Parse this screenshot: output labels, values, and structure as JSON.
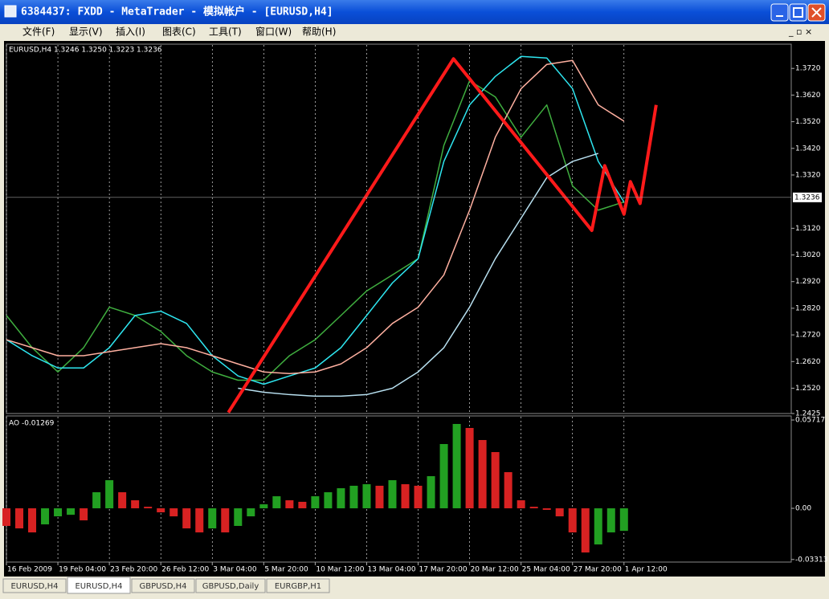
{
  "window": {
    "title": "6384437: FXDD - MetaTrader - 模拟帐户 - [EURUSD,H4]"
  },
  "menu": [
    "文件(F)",
    "显示(V)",
    "插入(I)",
    "图表(C)",
    "工具(T)",
    "窗口(W)",
    "帮助(H)"
  ],
  "tabs": [
    "EURUSD,H4",
    "EURUSD,H4",
    "GBPUSD,H4",
    "GBPUSD,Daily",
    "EURGBP,H1"
  ],
  "active_tab": 1,
  "chart_data": [
    {
      "type": "line",
      "title": "EURUSD,H4  1.3246 1.3250 1.3223 1.3236",
      "xlim": [
        0,
        244
      ],
      "ylim": [
        1.2425,
        1.3811
      ],
      "yticks": [
        {
          "value": 1.372,
          "label": "1.3720"
        },
        {
          "value": 1.362,
          "label": "1.3620"
        },
        {
          "value": 1.352,
          "label": "1.3520"
        },
        {
          "value": 1.342,
          "label": "1.3420"
        },
        {
          "value": 1.332,
          "label": "1.3320"
        },
        {
          "value": 1.312,
          "label": "1.3120"
        },
        {
          "value": 1.302,
          "label": "1.3020"
        },
        {
          "value": 1.292,
          "label": "1.2920"
        },
        {
          "value": 1.282,
          "label": "1.2820"
        },
        {
          "value": 1.272,
          "label": "1.2720"
        },
        {
          "value": 1.262,
          "label": "1.2620"
        },
        {
          "value": 1.252,
          "label": "1.2520"
        },
        {
          "value": 1.2425,
          "label": "1.2425"
        }
      ],
      "last_price": 1.3236,
      "series": [
        {
          "color": "#3fae3f",
          "x": [
            0,
            8,
            16,
            24,
            32,
            40,
            48,
            56,
            64,
            72,
            80,
            88,
            96,
            104,
            112,
            120,
            128,
            136,
            144,
            152,
            160,
            168,
            176,
            184,
            192
          ],
          "values": [
            1.2793,
            1.2672,
            1.2581,
            1.2672,
            1.2824,
            1.2793,
            1.2733,
            1.2642,
            1.2581,
            1.255,
            1.255,
            1.2642,
            1.2702,
            1.2793,
            1.2885,
            1.2945,
            1.3006,
            1.3431,
            1.3674,
            1.3613,
            1.3462,
            1.3583,
            1.3279,
            1.3188,
            1.3219
          ]
        },
        {
          "color": "#2ee6f0",
          "x": [
            0,
            8,
            16,
            24,
            32,
            40,
            48,
            56,
            64,
            72,
            80,
            88,
            96,
            104,
            112,
            120,
            128,
            136,
            144,
            152,
            160,
            168,
            176,
            184,
            192
          ],
          "values": [
            1.2702,
            1.2642,
            1.2596,
            1.2596,
            1.2672,
            1.2793,
            1.2809,
            1.2763,
            1.2642,
            1.2566,
            1.2535,
            1.2566,
            1.2596,
            1.2672,
            1.2793,
            1.2915,
            1.3006,
            1.3371,
            1.3583,
            1.369,
            1.3765,
            1.3759,
            1.3644,
            1.3371,
            1.3219
          ]
        },
        {
          "color": "#ffb0a0",
          "x": [
            0,
            8,
            16,
            24,
            32,
            40,
            48,
            56,
            64,
            72,
            80,
            88,
            96,
            104,
            112,
            120,
            128,
            136,
            144,
            152,
            160,
            168,
            176,
            184,
            192
          ],
          "values": [
            1.2702,
            1.2672,
            1.2642,
            1.2642,
            1.2657,
            1.2672,
            1.2687,
            1.2672,
            1.2642,
            1.2611,
            1.2581,
            1.2575,
            1.2581,
            1.2611,
            1.2672,
            1.2763,
            1.2824,
            1.2945,
            1.3188,
            1.3462,
            1.3644,
            1.3735,
            1.375,
            1.3583,
            1.3522
          ]
        },
        {
          "color": "#b8e0f0",
          "x": [
            72,
            80,
            88,
            96,
            104,
            112,
            120,
            128,
            136,
            144,
            152,
            160,
            168,
            176,
            184
          ],
          "values": [
            1.252,
            1.2505,
            1.2496,
            1.249,
            1.249,
            1.2496,
            1.252,
            1.2581,
            1.2672,
            1.2824,
            1.3006,
            1.3158,
            1.331,
            1.3371,
            1.3401
          ]
        },
        {
          "color": "#ff1a1a",
          "width": 4,
          "x": [
            69,
            139,
            182,
            186,
            192,
            194,
            197,
            202
          ],
          "values": [
            1.2429,
            1.3756,
            1.3112,
            1.3355,
            1.3173,
            1.3295,
            1.3213,
            1.3583
          ]
        }
      ]
    },
    {
      "type": "bar",
      "title": "AO -0.01269",
      "up_color": "#22a022",
      "down_color": "#d82222",
      "xlim": [
        0,
        244
      ],
      "ylim": [
        -0.0348,
        0.0598
      ],
      "yticks": [
        0.05717,
        {
          "value": 0,
          "label": "0.00"
        },
        -0.03313
      ],
      "xticks": [
        {
          "value": 0,
          "label": "16 Feb 2009"
        },
        {
          "value": 16,
          "label": "19 Feb 04:00"
        },
        {
          "value": 32,
          "label": "23 Feb 20:00"
        },
        {
          "value": 48,
          "label": "26 Feb 12:00"
        },
        {
          "value": 64,
          "label": "3 Mar 04:00"
        },
        {
          "value": 80,
          "label": "5 Mar 20:00"
        },
        {
          "value": 96,
          "label": "10 Mar 12:00"
        },
        {
          "value": 112,
          "label": "13 Mar 04:00"
        },
        {
          "value": 128,
          "label": "17 Mar 20:00"
        },
        {
          "value": 144,
          "label": "20 Mar 12:00"
        },
        {
          "value": 160,
          "label": "25 Mar 04:00"
        },
        {
          "value": 176,
          "label": "27 Mar 20:00"
        },
        {
          "value": 192,
          "label": "1 Apr 12:00"
        }
      ],
      "x": [
        0,
        4,
        8,
        12,
        16,
        20,
        24,
        28,
        32,
        36,
        40,
        44,
        48,
        52,
        56,
        60,
        64,
        68,
        72,
        76,
        80,
        84,
        88,
        92,
        96,
        100,
        104,
        108,
        112,
        116,
        120,
        124,
        128,
        132,
        136,
        140,
        144,
        148,
        152,
        156,
        160,
        164,
        168,
        172,
        176,
        180,
        184,
        188,
        192
      ],
      "values": [
        -0.0114,
        -0.013,
        -0.0156,
        -0.0104,
        -0.0052,
        -0.0042,
        -0.0078,
        0.0104,
        0.0182,
        0.0104,
        0.0052,
        0.001,
        -0.0026,
        -0.0052,
        -0.013,
        -0.0156,
        -0.013,
        -0.0156,
        -0.0114,
        -0.0052,
        0.0026,
        0.0078,
        0.0052,
        0.0042,
        0.0078,
        0.0104,
        0.013,
        0.0146,
        0.0156,
        0.0146,
        0.0182,
        0.0156,
        0.0146,
        0.0208,
        0.0416,
        0.0546,
        0.052,
        0.0442,
        0.0364,
        0.0234,
        0.0052,
        0.001,
        -0.001,
        -0.0052,
        -0.0156,
        -0.0286,
        -0.0234,
        -0.0156,
        -0.0146
      ]
    }
  ]
}
